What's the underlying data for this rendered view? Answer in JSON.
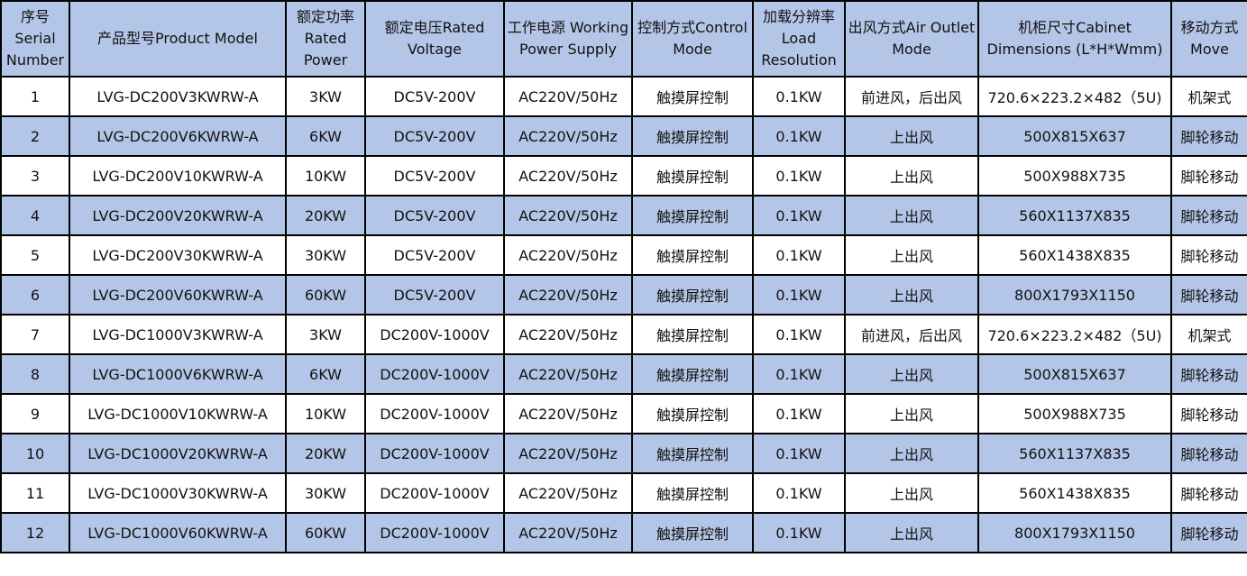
{
  "colors": {
    "header_bg": "#b4c6e7",
    "alt_row_bg": "#b4c6e7",
    "border": "#000000"
  },
  "headers": [
    "序号 Serial Number",
    "产品型号Product Model",
    "额定功率 Rated Power",
    "额定电压Rated Voltage",
    "工作电源 Working Power Supply",
    "控制方式Control Mode",
    "加载分辨率 Load Resolution",
    "出风方式Air Outlet Mode",
    "机柜尺寸Cabinet Dimensions (L*H*Wmm)",
    "移动方式 Move"
  ],
  "rows": [
    [
      "1",
      "LVG-DC200V3KWRW-A",
      "3KW",
      "DC5V-200V",
      "AC220V/50Hz",
      "触摸屏控制",
      "0.1KW",
      "前进风，后出风",
      "720.6×223.2×482（5U)",
      "机架式"
    ],
    [
      "2",
      "LVG-DC200V6KWRW-A",
      "6KW",
      "DC5V-200V",
      "AC220V/50Hz",
      "触摸屏控制",
      "0.1KW",
      "上出风",
      "500X815X637",
      "脚轮移动"
    ],
    [
      "3",
      "LVG-DC200V10KWRW-A",
      "10KW",
      "DC5V-200V",
      "AC220V/50Hz",
      "触摸屏控制",
      "0.1KW",
      "上出风",
      "500X988X735",
      "脚轮移动"
    ],
    [
      "4",
      "LVG-DC200V20KWRW-A",
      "20KW",
      "DC5V-200V",
      "AC220V/50Hz",
      "触摸屏控制",
      "0.1KW",
      "上出风",
      "560X1137X835",
      "脚轮移动"
    ],
    [
      "5",
      "LVG-DC200V30KWRW-A",
      "30KW",
      "DC5V-200V",
      "AC220V/50Hz",
      "触摸屏控制",
      "0.1KW",
      "上出风",
      "560X1438X835",
      "脚轮移动"
    ],
    [
      "6",
      "LVG-DC200V60KWRW-A",
      "60KW",
      "DC5V-200V",
      "AC220V/50Hz",
      "触摸屏控制",
      "0.1KW",
      "上出风",
      "800X1793X1150",
      "脚轮移动"
    ],
    [
      "7",
      "LVG-DC1000V3KWRW-A",
      "3KW",
      "DC200V-1000V",
      "AC220V/50Hz",
      "触摸屏控制",
      "0.1KW",
      "前进风，后出风",
      "720.6×223.2×482（5U)",
      "机架式"
    ],
    [
      "8",
      "LVG-DC1000V6KWRW-A",
      "6KW",
      "DC200V-1000V",
      "AC220V/50Hz",
      "触摸屏控制",
      "0.1KW",
      "上出风",
      "500X815X637",
      "脚轮移动"
    ],
    [
      "9",
      "LVG-DC1000V10KWRW-A",
      "10KW",
      "DC200V-1000V",
      "AC220V/50Hz",
      "触摸屏控制",
      "0.1KW",
      "上出风",
      "500X988X735",
      "脚轮移动"
    ],
    [
      "10",
      "LVG-DC1000V20KWRW-A",
      "20KW",
      "DC200V-1000V",
      "AC220V/50Hz",
      "触摸屏控制",
      "0.1KW",
      "上出风",
      "560X1137X835",
      "脚轮移动"
    ],
    [
      "11",
      "LVG-DC1000V30KWRW-A",
      "30KW",
      "DC200V-1000V",
      "AC220V/50Hz",
      "触摸屏控制",
      "0.1KW",
      "上出风",
      "560X1438X835",
      "脚轮移动"
    ],
    [
      "12",
      "LVG-DC1000V60KWRW-A",
      "60KW",
      "DC200V-1000V",
      "AC220V/50Hz",
      "触摸屏控制",
      "0.1KW",
      "上出风",
      "800X1793X1150",
      "脚轮移动"
    ]
  ]
}
